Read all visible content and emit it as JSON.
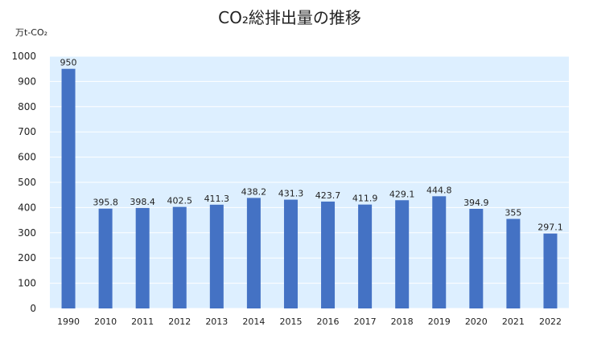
{
  "chart_data": {
    "type": "bar",
    "title": "CO₂総排出量の推移",
    "unit_label": "万t-CO₂",
    "categories": [
      "1990",
      "2010",
      "2011",
      "2012",
      "2013",
      "2014",
      "2015",
      "2016",
      "2017",
      "2018",
      "2019",
      "2020",
      "2021",
      "2022"
    ],
    "values": [
      950,
      395.8,
      398.4,
      402.5,
      411.3,
      438.2,
      431.3,
      423.7,
      411.9,
      429.1,
      444.8,
      394.9,
      355,
      297.1
    ],
    "value_labels": [
      "950",
      "395.8",
      "398.4",
      "402.5",
      "411.3",
      "438.2",
      "431.3",
      "423.7",
      "411.9",
      "429.1",
      "444.8",
      "394.9",
      "355",
      "297.1"
    ],
    "ylim": [
      0,
      1000
    ],
    "yticks": [
      0,
      100,
      200,
      300,
      400,
      500,
      600,
      700,
      800,
      900,
      1000
    ],
    "grid": true,
    "legend": "none",
    "colors": {
      "bar": "#4472C4",
      "plot_background": "#DDEFFF",
      "grid": "#FFFFFF",
      "text": "#222222"
    }
  }
}
